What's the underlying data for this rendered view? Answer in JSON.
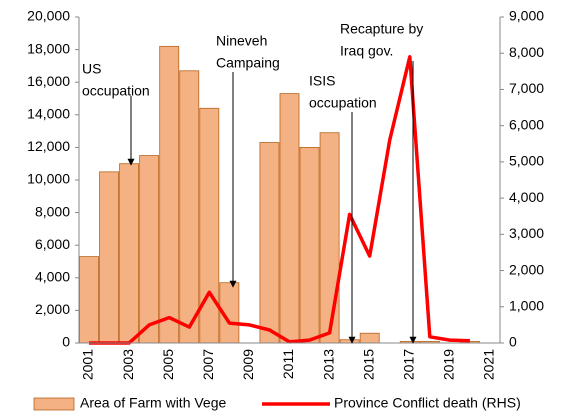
{
  "chart_data": {
    "type": "bar-line",
    "categories": [
      "2001",
      null,
      "2003",
      null,
      "2005",
      null,
      "2007",
      null,
      "2009",
      null,
      "2011",
      null,
      "2013",
      null,
      "2015",
      null,
      "2017",
      null,
      "2019",
      null,
      "2021"
    ],
    "series": [
      {
        "name": "Area of Farm with Vege",
        "type": "bar",
        "color": "#f4b183",
        "edge": "#b5651d",
        "values": [
          5300,
          10500,
          11000,
          11500,
          18200,
          16700,
          14400,
          3700,
          0,
          12300,
          15300,
          12000,
          12900,
          200,
          600,
          0,
          100,
          100,
          0,
          100,
          0
        ]
      },
      {
        "name": "Province Conflict death (RHS)",
        "type": "line",
        "color": "#ff0000",
        "axis": "y2",
        "values": [
          0,
          0,
          0,
          500,
          700,
          440,
          1400,
          550,
          500,
          360,
          30,
          80,
          280,
          3550,
          2400,
          5600,
          7900,
          170,
          80,
          60,
          null
        ]
      }
    ],
    "ylim": [
      0,
      20000
    ],
    "yticks": [
      0,
      {
        "value": 2000,
        "label": "2,000"
      },
      {
        "value": 4000,
        "label": "4,000"
      },
      {
        "value": 6000,
        "label": "6,000"
      },
      {
        "value": 8000,
        "label": "8,000"
      },
      {
        "value": 10000,
        "label": "10,000"
      },
      {
        "value": 12000,
        "label": "12,000"
      },
      {
        "value": 14000,
        "label": "14,000"
      },
      {
        "value": 16000,
        "label": "16,000"
      },
      {
        "value": 18000,
        "label": "18,000"
      },
      {
        "value": 20000,
        "label": "20,000"
      }
    ],
    "y2lim": [
      0,
      9000
    ],
    "y2ticks": [
      0,
      {
        "value": 1000,
        "label": "1,000"
      },
      {
        "value": 2000,
        "label": "2,000"
      },
      {
        "value": 3000,
        "label": "3,000"
      },
      {
        "value": 4000,
        "label": "4,000"
      },
      {
        "value": 5000,
        "label": "5,000"
      },
      {
        "value": 6000,
        "label": "6,000"
      },
      {
        "value": 7000,
        "label": "7,000"
      },
      {
        "value": 8000,
        "label": "8,000"
      },
      {
        "value": 9000,
        "label": "9,000"
      }
    ],
    "annotations": [
      {
        "lines": [
          "US",
          "occupation"
        ]
      },
      {
        "lines": [
          "Nineveh",
          "Campaing"
        ]
      },
      {
        "lines": [
          "ISIS",
          "occupation"
        ]
      },
      {
        "lines": [
          "Recapture by",
          "Iraq gov."
        ]
      }
    ],
    "legend": "bottom"
  }
}
